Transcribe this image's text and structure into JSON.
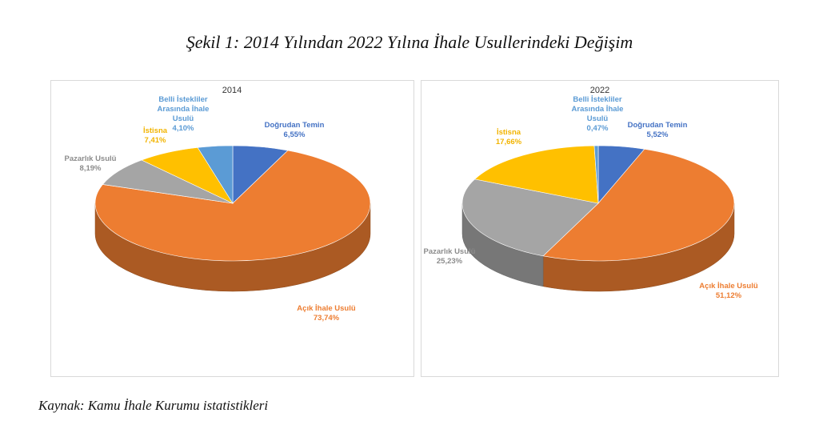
{
  "figure_title": "Şekil 1: 2014 Yılından 2022 Yılına İhale Usullerindeki Değişim",
  "source_note": "Kaynak: Kamu İhale Kurumu istatistikleri",
  "chart_data": [
    {
      "type": "pie",
      "title": "2014",
      "slices": [
        {
          "label": "Doğrudan Temin",
          "value": 6.55,
          "display": "6,55%",
          "color": "#4472C4",
          "label_color": "#4472C4"
        },
        {
          "label": "Açık İhale Usulü",
          "value": 73.74,
          "display": "73,74%",
          "color": "#ED7D31",
          "label_color": "#ED7D31"
        },
        {
          "label": "Pazarlık Usulü",
          "value": 8.19,
          "display": "8,19%",
          "color": "#A5A5A5",
          "label_color": "#8C8C8C"
        },
        {
          "label": "İstisna",
          "value": 7.41,
          "display": "7,41%",
          "color": "#FFC000",
          "label_color": "#F2B400"
        },
        {
          "label": "Belli İstekliler Arasında İhale Usulü",
          "value": 4.1,
          "display": "4,10%",
          "color": "#5B9BD5",
          "label_color": "#5B9BD5"
        }
      ],
      "legend": "none"
    },
    {
      "type": "pie",
      "title": "2022",
      "slices": [
        {
          "label": "Doğrudan Temin",
          "value": 5.52,
          "display": "5,52%",
          "color": "#4472C4",
          "label_color": "#4472C4"
        },
        {
          "label": "Açık İhale Usulü",
          "value": 51.12,
          "display": "51,12%",
          "color": "#ED7D31",
          "label_color": "#ED7D31"
        },
        {
          "label": "Pazarlık Usulü",
          "value": 25.23,
          "display": "25,23%",
          "color": "#A5A5A5",
          "label_color": "#8C8C8C"
        },
        {
          "label": "İstisna",
          "value": 17.66,
          "display": "17,66%",
          "color": "#FFC000",
          "label_color": "#F2B400"
        },
        {
          "label": "Belli İstekliler Arasında İhale Usulü",
          "value": 0.47,
          "display": "0,47%",
          "color": "#5B9BD5",
          "label_color": "#5B9BD5"
        }
      ],
      "legend": "none"
    }
  ]
}
